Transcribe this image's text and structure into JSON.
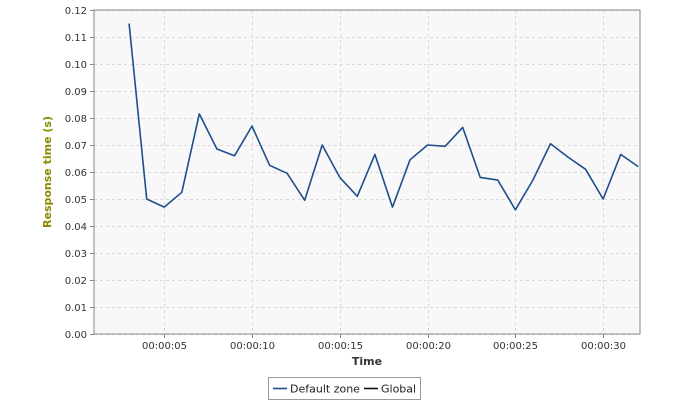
{
  "chart_data": {
    "type": "line",
    "title": "",
    "xlabel": "Time",
    "ylabel": "Response time (s)",
    "xlim": [
      1,
      32.1
    ],
    "ylim": [
      0,
      0.12
    ],
    "y_ticks": [
      "0.00",
      "0.01",
      "0.02",
      "0.03",
      "0.04",
      "0.05",
      "0.06",
      "0.07",
      "0.08",
      "0.09",
      "0.10",
      "0.11",
      "0.12"
    ],
    "x_ticks": [
      {
        "t": 5,
        "label": "00:00:05"
      },
      {
        "t": 10,
        "label": "00:00:10"
      },
      {
        "t": 15,
        "label": "00:00:15"
      },
      {
        "t": 20,
        "label": "00:00:20"
      },
      {
        "t": 25,
        "label": "00:00:25"
      },
      {
        "t": 30,
        "label": "00:00:30"
      }
    ],
    "grid": true,
    "legend_position": "bottom-center",
    "series": [
      {
        "name": "Default zone",
        "color": "#1f4e8c",
        "x": [
          3,
          4,
          5,
          6,
          7,
          8,
          9,
          10,
          11,
          12,
          13,
          14,
          15,
          16,
          17,
          18,
          19,
          20,
          21,
          22,
          23,
          24,
          25,
          26,
          27,
          28,
          29,
          30,
          31,
          32
        ],
        "values": [
          0.115,
          0.05,
          0.047,
          0.0525,
          0.0815,
          0.0685,
          0.066,
          0.077,
          0.0625,
          0.0595,
          0.0495,
          0.07,
          0.058,
          0.051,
          0.0665,
          0.047,
          0.0645,
          0.07,
          0.0695,
          0.0765,
          0.058,
          0.057,
          0.046,
          0.057,
          0.0705,
          0.0655,
          0.061,
          0.05,
          0.0665,
          0.062
        ]
      },
      {
        "name": "Global",
        "color": "#111111",
        "x": [],
        "values": []
      }
    ]
  },
  "colors": {
    "plot_background": "#f8f8f8",
    "grid": "#d9d9d9",
    "axis": "#888888",
    "ylabel": "#8b8b00",
    "xlabel": "#333333"
  }
}
